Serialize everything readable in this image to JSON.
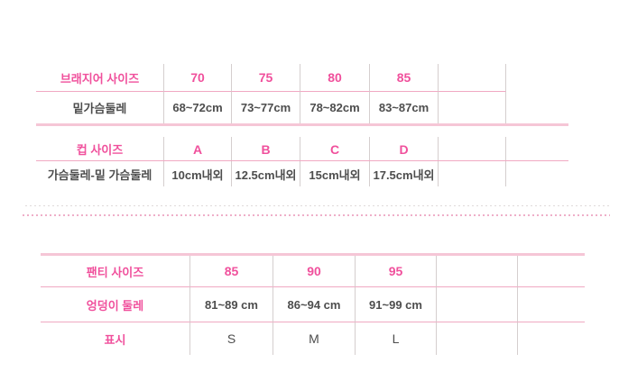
{
  "colors": {
    "pink_text": "#f0509c",
    "dark_text": "#4d4d4d",
    "thin_line": "#f0a9c2",
    "thick_line": "#f5c6d6",
    "divider": "#d5cece",
    "dotted_pink": "#eeafc9",
    "dotted_gray": "#dfdada"
  },
  "bra_table": {
    "header": [
      "브래지어 사이즈",
      "70",
      "75",
      "80",
      "85",
      ""
    ],
    "rows": [
      [
        "밑가슴둘레",
        "68~72cm",
        "73~77cm",
        "78~82cm",
        "83~87cm",
        ""
      ]
    ]
  },
  "cup_table": {
    "header": [
      "컵 사이즈",
      "A",
      "B",
      "C",
      "D",
      ""
    ],
    "rows": [
      [
        "가슴둘레-밑 가슴둘레",
        "10cm내외",
        "12.5cm내외",
        "15cm내외",
        "17.5cm내외",
        ""
      ]
    ]
  },
  "panty_table": {
    "header": [
      "팬티 사이즈",
      "85",
      "90",
      "95",
      "",
      ""
    ],
    "rows": [
      [
        "엉덩이 둘레",
        "81~89 cm",
        "86~94 cm",
        "91~99 cm",
        "",
        ""
      ],
      [
        "표시",
        "S",
        "M",
        "L",
        "",
        ""
      ]
    ]
  }
}
